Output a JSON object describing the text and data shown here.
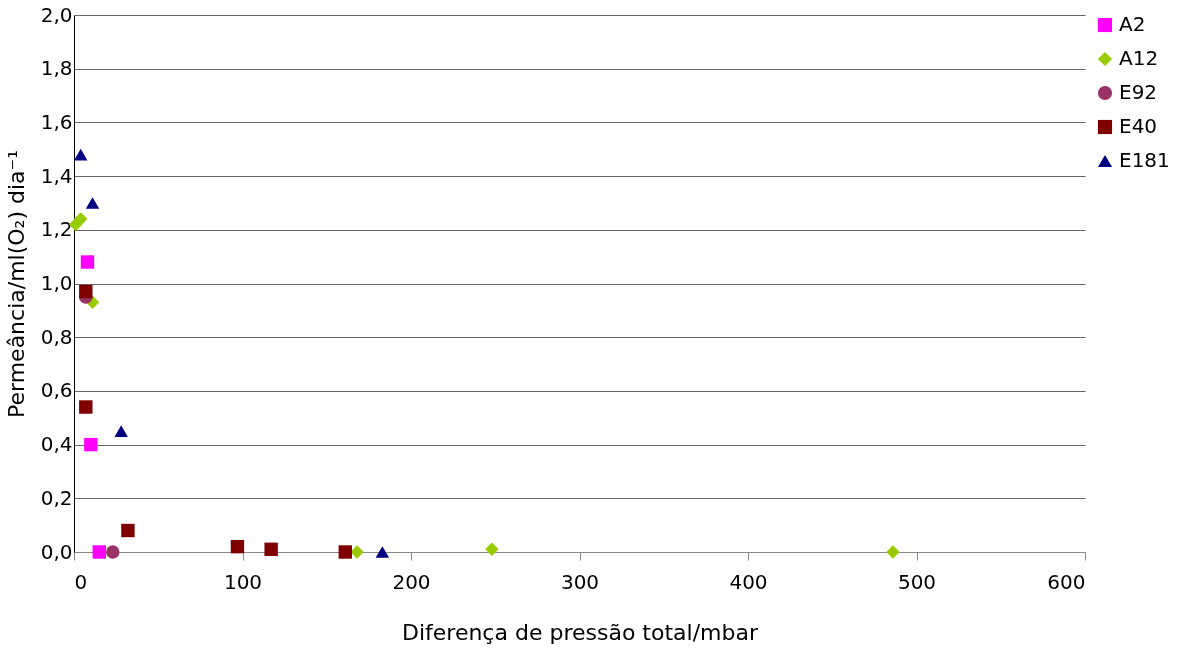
{
  "chart_data": {
    "type": "scatter",
    "xlabel": "Diferença de pressão total/mbar",
    "ylabel": "Permeância/ml(O₂) dia⁻¹",
    "xlim": [
      0,
      600
    ],
    "xticks": [
      0,
      100,
      200,
      300,
      400,
      500,
      600
    ],
    "ylim": [
      0,
      2.0
    ],
    "yticks": [
      {
        "value": 0,
        "label": "0,0"
      },
      {
        "value": 0.2,
        "label": "0,2"
      },
      {
        "value": 0.4,
        "label": "0,4"
      },
      {
        "value": 0.6,
        "label": "0,6"
      },
      {
        "value": 0.8,
        "label": "0,8"
      },
      {
        "value": 1.0,
        "label": "1,0"
      },
      {
        "value": 1.2,
        "label": "1,2"
      },
      {
        "value": 1.4,
        "label": "1,4"
      },
      {
        "value": 1.6,
        "label": "1,6"
      },
      {
        "value": 1.8,
        "label": "1,8"
      },
      {
        "value": 2.0,
        "label": "2,0"
      }
    ],
    "grid": "y",
    "legend": "right",
    "series": [
      {
        "name": "A2",
        "color": "#ff00ff",
        "marker": "square",
        "x": [
          8,
          10,
          15
        ],
        "values": [
          1.08,
          0.4,
          0.0
        ]
      },
      {
        "name": "A12",
        "color": "#99cc00",
        "marker": "diamond",
        "x": [
          1,
          4,
          11,
          168,
          248,
          486
        ],
        "values": [
          1.22,
          1.24,
          0.93,
          0.0,
          0.01,
          0.0
        ]
      },
      {
        "name": "E92",
        "color": "#993366",
        "marker": "circle",
        "x": [
          7,
          23
        ],
        "values": [
          0.95,
          0.0
        ]
      },
      {
        "name": "E40",
        "color": "#800000",
        "marker": "square",
        "x": [
          7,
          7,
          32,
          97,
          117,
          161
        ],
        "values": [
          0.97,
          0.54,
          0.08,
          0.02,
          0.01,
          0.0
        ]
      },
      {
        "name": "E181",
        "color": "#000080",
        "marker": "triangle",
        "x": [
          4,
          11,
          28,
          183
        ],
        "values": [
          1.48,
          1.3,
          0.45,
          0.0
        ]
      }
    ]
  }
}
